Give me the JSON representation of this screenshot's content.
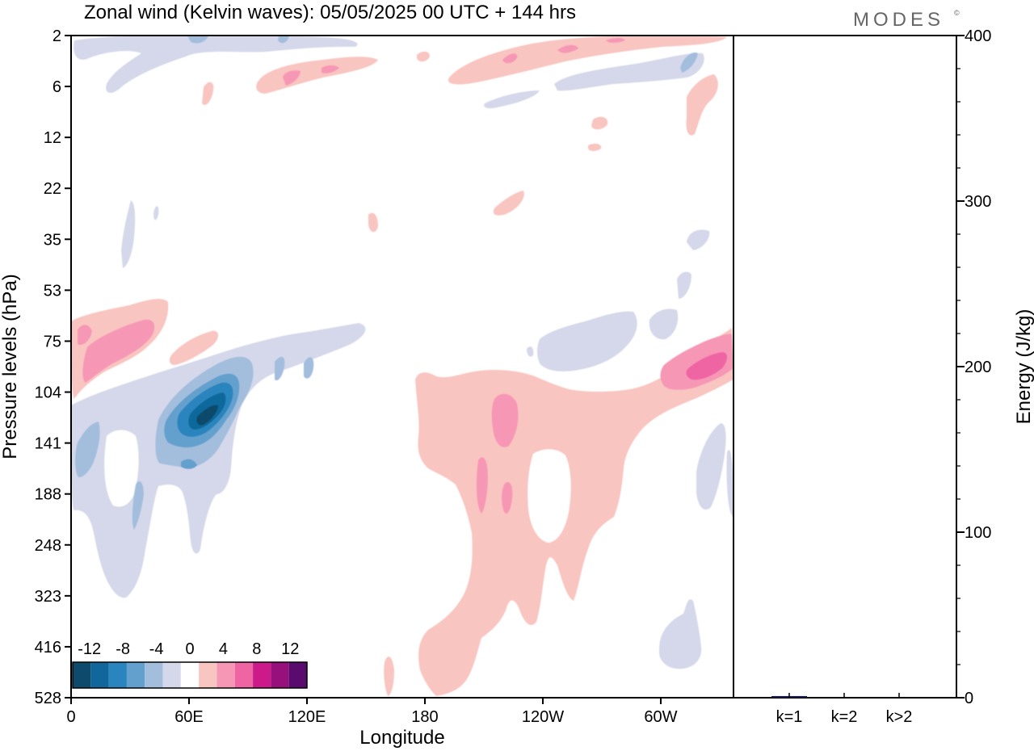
{
  "header": {
    "title": "Zonal wind (Kelvin waves):  05/05/2025  00 UTC  + 144 hrs",
    "brand": "MODES",
    "brand_mark": "©"
  },
  "chart_data": [
    {
      "type": "heatmap",
      "title": "Zonal wind (Kelvin waves):  05/05/2025  00 UTC  + 144 hrs",
      "xlabel": "Longitude",
      "ylabel": "Pressure levels (hPa)",
      "x_ticks": [
        "0",
        "60E",
        "120E",
        "180",
        "120W",
        "60W"
      ],
      "x_tick_values": [
        0,
        60,
        120,
        180,
        240,
        300
      ],
      "xlim": [
        0,
        337
      ],
      "y_ticks": [
        "2",
        "6",
        "12",
        "22",
        "35",
        "53",
        "75",
        "104",
        "141",
        "188",
        "248",
        "323",
        "416",
        "528"
      ],
      "y_scale": "pressure levels (equally spaced labels)",
      "colorbar": {
        "labels": [
          "-12",
          "-8",
          "-4",
          "0",
          "4",
          "8",
          "12"
        ],
        "levels": [
          -14,
          -12,
          -10,
          -8,
          -6,
          -4,
          -2,
          2,
          4,
          6,
          8,
          10,
          12,
          14
        ],
        "colors": [
          "#0e4a6b",
          "#11679b",
          "#2a84bd",
          "#63a0cd",
          "#a3bedd",
          "#d5d8ea",
          "#ffffff",
          "#f9c5c0",
          "#f797b6",
          "#ef65a3",
          "#cc1a8a",
          "#96117c",
          "#5a0c6e"
        ],
        "placement": "bottom-left"
      },
      "features": [
        {
          "sign": "negative",
          "peak": -12,
          "lon": 75,
          "pressure_hPa": 130,
          "note": "strongest easterly anomaly"
        },
        {
          "sign": "positive",
          "peak": 10,
          "lon": 322,
          "pressure_hPa": 95,
          "note": "strongest westerly anomaly"
        },
        {
          "sign": "positive",
          "peak": 6,
          "lon": 12,
          "pressure_hPa": 80
        },
        {
          "sign": "positive",
          "peak": 4,
          "lon": 230,
          "pressure_hPa": 130
        },
        {
          "sign": "positive",
          "peak": 4,
          "lon": 215,
          "pressure_hPa": 160
        },
        {
          "sign": "positive",
          "peak": 4,
          "lon": 99,
          "pressure_hPa": 5
        },
        {
          "sign": "negative",
          "peak": -4,
          "lon": 311,
          "pressure_hPa": 4
        }
      ]
    },
    {
      "type": "bar",
      "title": "",
      "xlabel": "",
      "ylabel": "Energy (J/kg)",
      "categories": [
        "k=1",
        "k=2",
        "k>2"
      ],
      "values": [
        1,
        0,
        0
      ],
      "ylim": [
        0,
        400
      ],
      "y_ticks": [
        "0",
        "100",
        "200",
        "300",
        "400"
      ],
      "bar_color": "#1a1a4e"
    }
  ]
}
